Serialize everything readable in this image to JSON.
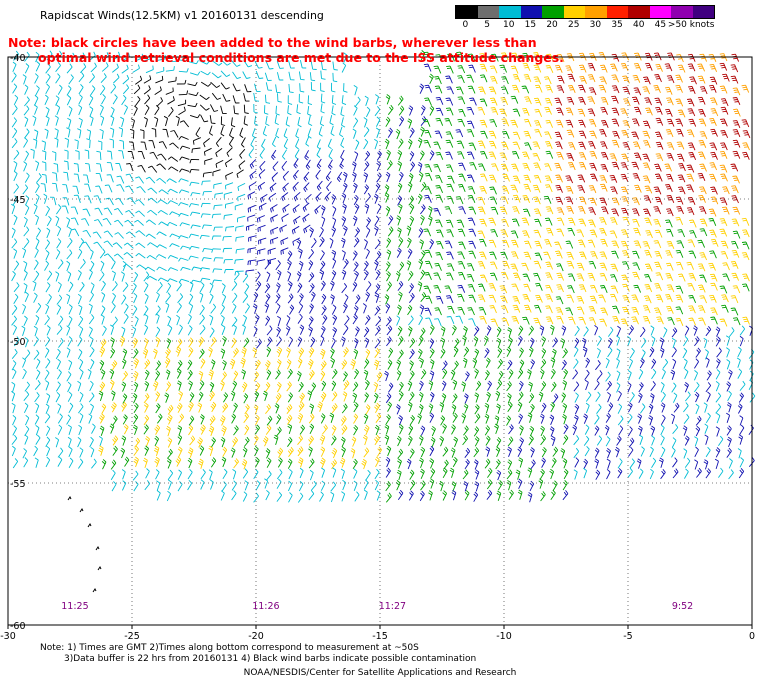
{
  "title": "Rapidscat Winds(12.5KM)  v1  20160131  descending",
  "note": {
    "line1": "Note: black circles have been added to the wind barbs, wherever less than",
    "line2": "optimal wind retrieval conditions are met due to the ISS attitude changes."
  },
  "legend": {
    "ticks": [
      "0",
      "5",
      "10",
      "15",
      "20",
      "25",
      "30",
      "35",
      "40",
      "45",
      ">50 knots"
    ],
    "colors": [
      "#000000",
      "#6e6e6e",
      "#00bcd4",
      "#1010b0",
      "#00a000",
      "#ffd000",
      "#ffa000",
      "#ff2000",
      "#b00000",
      "#ff00ff",
      "#9000b0",
      "#400080"
    ]
  },
  "map": {
    "x_ticks": [
      "-30",
      "-25",
      "-20",
      "-15",
      "-10",
      "-5",
      "0"
    ],
    "y_ticks": [
      "-40",
      "-45",
      "-50",
      "-55",
      "-60"
    ],
    "x_range": [
      -30,
      0
    ],
    "y_range": [
      -60,
      -40
    ],
    "grid": "dotted",
    "time_labels": [
      {
        "text": "11:25",
        "lon": -27.3
      },
      {
        "text": "11:26",
        "lon": -19.6
      },
      {
        "text": "11:27",
        "lon": -14.5
      },
      {
        "text": "9:52",
        "lon": -2.8
      }
    ]
  },
  "footnotes": {
    "line1": "Note: 1) Times are GMT 2)Times along bottom correspond to measurement at ~50S",
    "line2": "3)Data buffer is 22 hrs from 20160131 4) Black wind barbs indicate possible contamination"
  },
  "credit": "NOAA/NESDIS/Center for Satellite Applications and Research"
}
